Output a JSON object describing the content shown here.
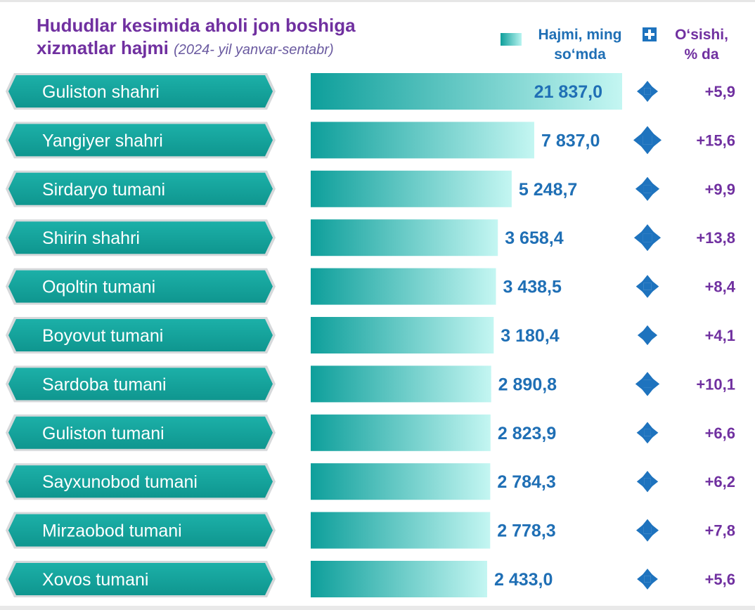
{
  "header": {
    "title": "Hududlar kesimida aholi jon boshiga",
    "title_line2": "xizmatlar hajmi",
    "subtitle": "(2024- yil yanvar-sentabr)"
  },
  "legend": {
    "volume_label_line1": "Hajmi, ming",
    "volume_label_line2": "so‘mda",
    "growth_label_line1": "O‘sishi,",
    "growth_label_line2": "% da"
  },
  "colors": {
    "bar_start": "#0e9f9b",
    "bar_end": "#c4f6f2",
    "label_fill": "#15a39c",
    "value_text": "#1f6fb5",
    "growth_text": "#7030a0",
    "icon": "#1e73be"
  },
  "chart_data": {
    "type": "bar",
    "orientation": "horizontal",
    "categories": [
      "Guliston shahri",
      "Yangiyer shahri",
      "Sirdaryo tumani",
      "Shirin shahri",
      "Oqoltin tumani",
      "Boyovut tumani",
      "Sardoba tumani",
      "Guliston tumani",
      "Sayxunobod tumani",
      "Mirzaobod tumani",
      "Xovos tumani"
    ],
    "series": [
      {
        "name": "Hajmi, ming so‘mda",
        "values": [
          21837.0,
          7837.0,
          5248.7,
          3658.4,
          3438.5,
          3180.4,
          2890.8,
          2823.9,
          2784.3,
          2778.3,
          2433.0
        ],
        "labels": [
          "21 837,0",
          "7 837,0",
          "5 248,7",
          "3 658,4",
          "3 438,5",
          "3 180,4",
          "2 890,8",
          "2 823,9",
          "2 784,3",
          "2 778,3",
          "2 433,0"
        ]
      },
      {
        "name": "O‘sishi, % da",
        "values": [
          5.9,
          15.6,
          9.9,
          13.8,
          8.4,
          4.1,
          10.1,
          6.6,
          6.2,
          7.8,
          5.6
        ],
        "labels": [
          "+5,9",
          "+15,6",
          "+9,9",
          "+13,8",
          "+8,4",
          "+4,1",
          "+10,1",
          "+6,6",
          "+6,2",
          "+7,8",
          "+5,6"
        ]
      }
    ],
    "axis_break": true,
    "grid": false,
    "legend_position": "top-right"
  }
}
